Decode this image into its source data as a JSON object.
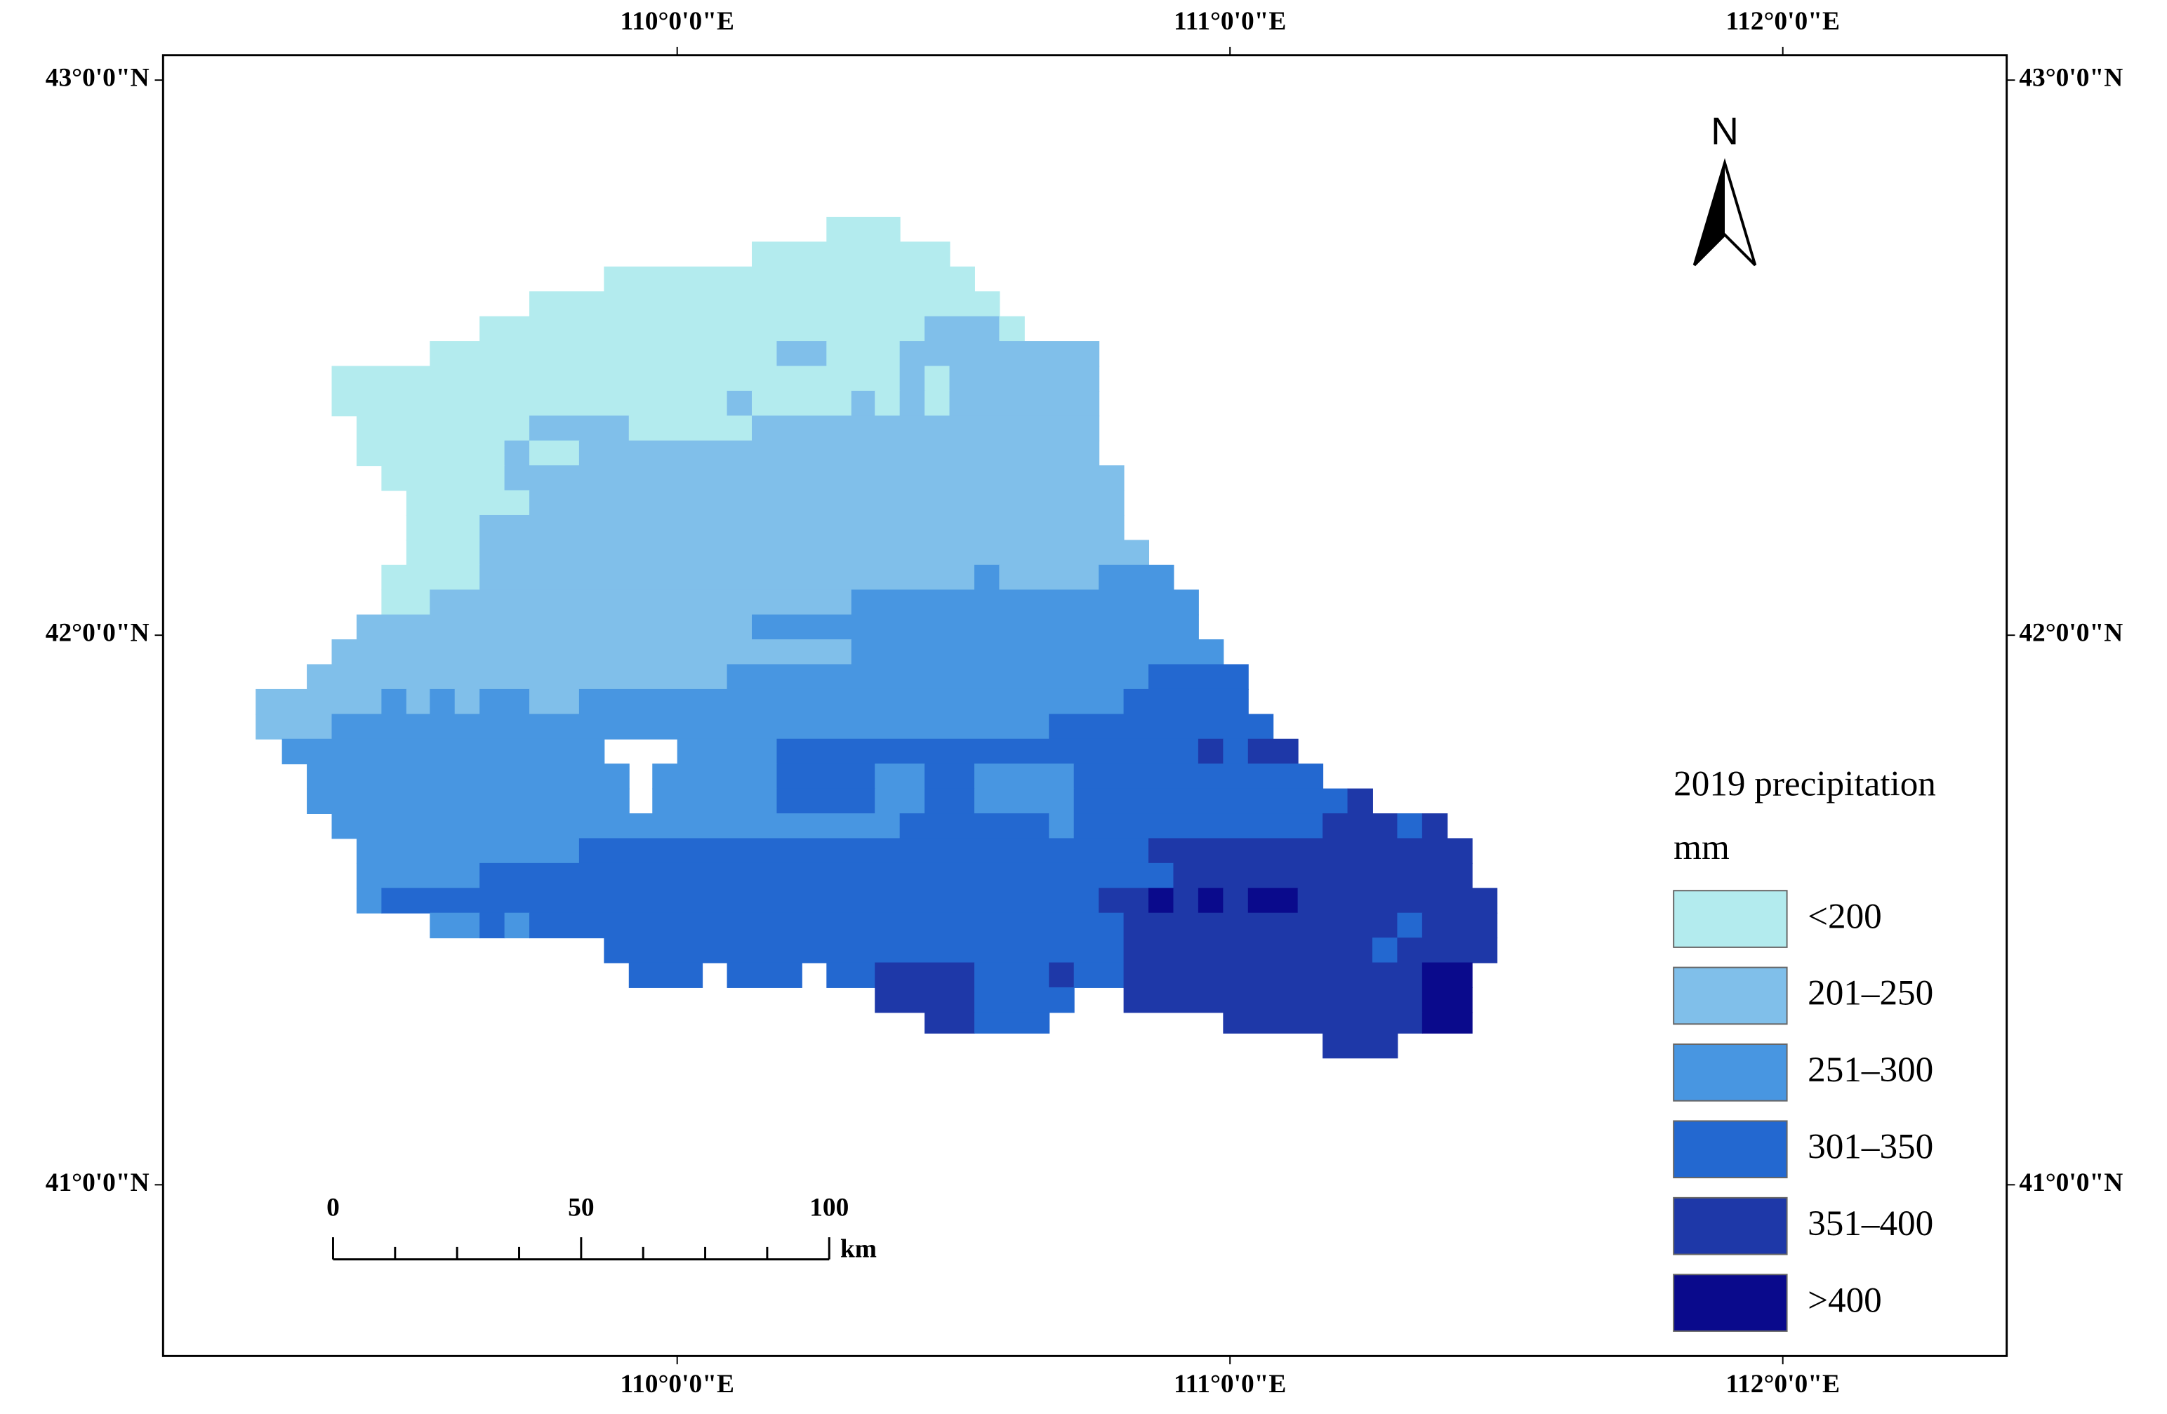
{
  "map": {
    "axes": {
      "top": [
        "110°0'0\"E",
        "111°0'0\"E",
        "112°0'0\"E"
      ],
      "bottom": [
        "110°0'0\"E",
        "111°0'0\"E",
        "112°0'0\"E"
      ],
      "left": [
        "43°0'0\"N",
        "42°0'0\"N",
        "41°0'0\"N"
      ],
      "right": [
        "43°0'0\"N",
        "42°0'0\"N",
        "41°0'0\"N"
      ]
    },
    "north": "N",
    "legend": {
      "title": "2019 precipitation",
      "unit": "mm",
      "items": [
        {
          "label": "<200",
          "color": "#b3ebee"
        },
        {
          "label": "201–250",
          "color": "#80bfea"
        },
        {
          "label": "251–300",
          "color": "#4896e1"
        },
        {
          "label": "301–350",
          "color": "#2368d0"
        },
        {
          "label": "351–400",
          "color": "#1e38a8"
        },
        {
          "label": ">400",
          "color": "#0a0a8c"
        }
      ]
    },
    "scale_bar": {
      "labels": [
        "0",
        "50",
        "100"
      ],
      "unit": "km"
    }
  }
}
